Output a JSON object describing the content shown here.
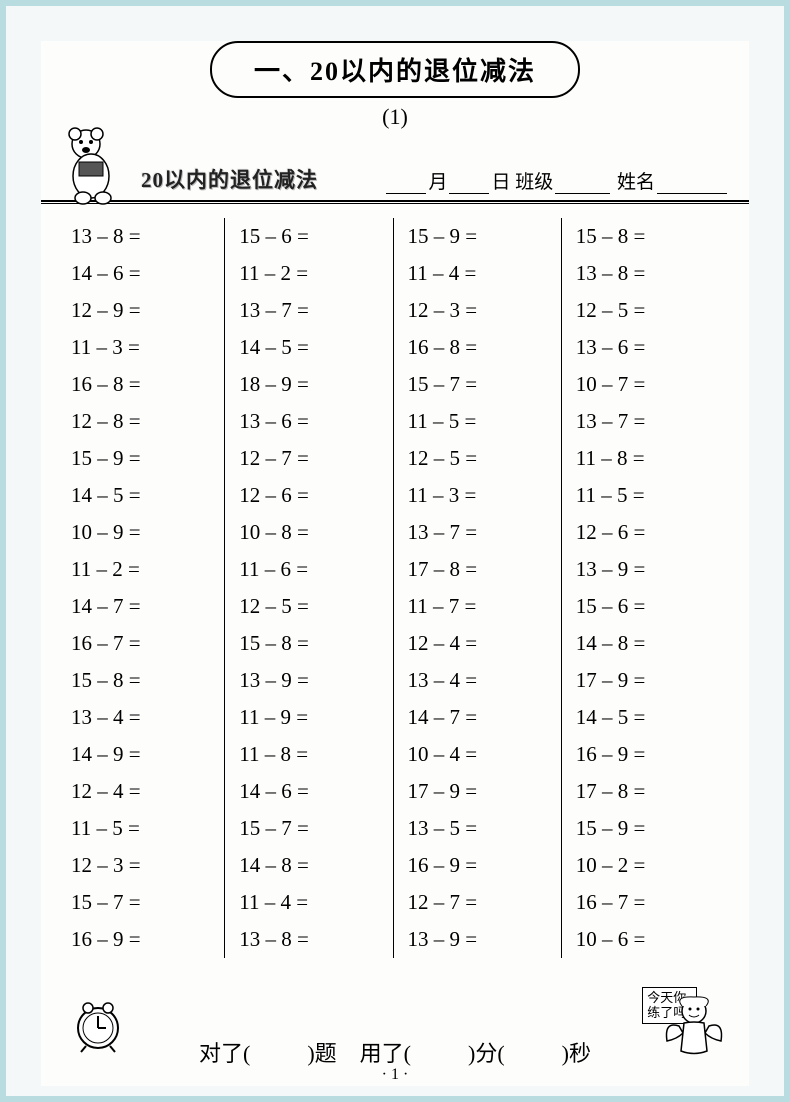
{
  "title": "一、20以内的退位减法",
  "subnumber": "(1)",
  "subtitle": "20以内的退位减法",
  "fields": {
    "month": "月",
    "day": "日",
    "class_label": "班级",
    "name_label": "姓名"
  },
  "columns": [
    [
      "13 – 8 =",
      "14 – 6 =",
      "12 – 9 =",
      "11 – 3 =",
      "16 – 8 =",
      "12 – 8 =",
      "15 – 9 =",
      "14 – 5 =",
      "10 – 9 =",
      "11 – 2 =",
      "14 – 7 =",
      "16 – 7 =",
      "15 – 8 =",
      "13 – 4 =",
      "14 – 9 =",
      "12 – 4 =",
      "11 – 5 =",
      "12 – 3 =",
      "15 – 7 =",
      "16 – 9 ="
    ],
    [
      "15 – 6 =",
      "11 – 2 =",
      "13 – 7 =",
      "14 – 5 =",
      "18 – 9 =",
      "13 – 6 =",
      "12 – 7 =",
      "12 – 6 =",
      "10 – 8 =",
      "11 – 6 =",
      "12 – 5 =",
      "15 – 8 =",
      "13 – 9 =",
      "11 – 9 =",
      "11 – 8 =",
      "14 – 6 =",
      "15 – 7 =",
      "14 – 8 =",
      "11 – 4 =",
      "13 – 8 ="
    ],
    [
      "15 – 9 =",
      "11 – 4 =",
      "12 – 3 =",
      "16 – 8 =",
      "15 – 7 =",
      "11 – 5 =",
      "12 – 5 =",
      "11 – 3 =",
      "13 – 7 =",
      "17 – 8 =",
      "11 – 7 =",
      "12 – 4 =",
      "13 – 4 =",
      "14 – 7 =",
      "10 – 4 =",
      "17 – 9 =",
      "13 – 5 =",
      "16 – 9 =",
      "12 – 7 =",
      "13 – 9 ="
    ],
    [
      "15 – 8 =",
      "13 – 8 =",
      "12 – 5 =",
      "13 – 6 =",
      "10 – 7 =",
      "13 – 7 =",
      "11 – 8 =",
      "11 – 5 =",
      "12 – 6 =",
      "13 – 9 =",
      "15 – 6 =",
      "14 – 8 =",
      "17 – 9 =",
      "14 – 5 =",
      "16 – 9 =",
      "17 – 8 =",
      "15 – 9 =",
      "10 – 2 =",
      "16 – 7 =",
      "10 – 6 ="
    ]
  ],
  "footer": {
    "correct": "对了(",
    "correct_unit": ")题",
    "used": "用了(",
    "min_unit": ")分(",
    "sec_unit": ")秒"
  },
  "speech_line1": "今天你",
  "speech_line2": "练了吗?",
  "page_number": "· 1 ·",
  "colors": {
    "border": "#b8dce0",
    "bg": "#fdfdfb",
    "text": "#000000"
  }
}
